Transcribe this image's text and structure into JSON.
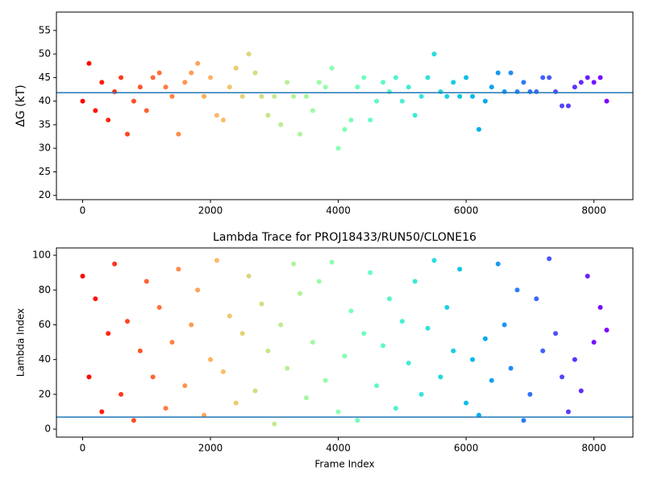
{
  "chart_data": [
    {
      "type": "scatter",
      "ylabel": "ΔG (kT)",
      "colormap": "rainbow_r",
      "hline": 41.8,
      "hline_color": "#1f77b4",
      "xlim": [
        -410,
        8610
      ],
      "xticks": [
        0,
        2000,
        4000,
        6000,
        8000
      ],
      "ylim": [
        19.1,
        58.9
      ],
      "yticks": [
        20,
        25,
        30,
        35,
        40,
        45,
        50,
        55
      ],
      "x": [
        0,
        100,
        200,
        300,
        400,
        500,
        600,
        700,
        800,
        900,
        1000,
        1100,
        1200,
        1300,
        1400,
        1500,
        1600,
        1700,
        1800,
        1900,
        2000,
        2100,
        2200,
        2300,
        2400,
        2500,
        2600,
        2700,
        2800,
        2900,
        3000,
        3100,
        3200,
        3300,
        3400,
        3500,
        3600,
        3700,
        3800,
        3900,
        4000,
        4100,
        4200,
        4300,
        4400,
        4500,
        4600,
        4700,
        4800,
        4900,
        5000,
        5100,
        5200,
        5300,
        5400,
        5500,
        5600,
        5700,
        5800,
        5900,
        6000,
        6100,
        6200,
        6300,
        6400,
        6500,
        6600,
        6700,
        6800,
        6900,
        7000,
        7100,
        7200,
        7300,
        7400,
        7500,
        7600,
        7700,
        7800,
        7900,
        8000,
        8100,
        8200
      ],
      "values": [
        40,
        48,
        38,
        44,
        36,
        42,
        45,
        33,
        40,
        43,
        38,
        45,
        46,
        43,
        41,
        33,
        44,
        46,
        48,
        41,
        45,
        37,
        36,
        43,
        47,
        41,
        50,
        46,
        41,
        37,
        41,
        35,
        44,
        41,
        33,
        41,
        38,
        44,
        43,
        47,
        30,
        34,
        36,
        43,
        45,
        36,
        40,
        44,
        42,
        45,
        40,
        43,
        37,
        41,
        45,
        50,
        42,
        41,
        44,
        41,
        45,
        41,
        34,
        40,
        43,
        46,
        42,
        46,
        42,
        44,
        42,
        42,
        45,
        45,
        42,
        39,
        39,
        43,
        44,
        45,
        44,
        45,
        40
      ]
    },
    {
      "type": "scatter",
      "title": "Lambda Trace for PROJ18433/RUN50/CLONE16",
      "xlabel": "Frame Index",
      "ylabel": "Lambda Index",
      "colormap": "rainbow_r",
      "hline": 6.9,
      "hline_color": "#1f77b4",
      "xlim": [
        -410,
        8610
      ],
      "xticks": [
        0,
        2000,
        4000,
        6000,
        8000
      ],
      "ylim": [
        -4.6,
        104.2
      ],
      "yticks": [
        0,
        20,
        40,
        60,
        80,
        100
      ],
      "x": [
        0,
        100,
        200,
        300,
        400,
        500,
        600,
        700,
        800,
        900,
        1000,
        1100,
        1200,
        1300,
        1400,
        1500,
        1600,
        1700,
        1800,
        1900,
        2000,
        2100,
        2200,
        2300,
        2400,
        2500,
        2600,
        2700,
        2800,
        2900,
        3000,
        3100,
        3200,
        3300,
        3400,
        3500,
        3600,
        3700,
        3800,
        3900,
        4000,
        4100,
        4200,
        4300,
        4400,
        4500,
        4600,
        4700,
        4800,
        4900,
        5000,
        5100,
        5200,
        5300,
        5400,
        5500,
        5600,
        5700,
        5800,
        5900,
        6000,
        6100,
        6200,
        6300,
        6400,
        6500,
        6600,
        6700,
        6800,
        6900,
        7000,
        7100,
        7200,
        7300,
        7400,
        7500,
        7600,
        7700,
        7800,
        7900,
        8000,
        8100,
        8200
      ],
      "values": [
        88,
        30,
        75,
        10,
        55,
        95,
        20,
        62,
        5,
        45,
        85,
        30,
        70,
        12,
        50,
        92,
        25,
        60,
        80,
        8,
        40,
        97,
        33,
        65,
        15,
        55,
        88,
        22,
        72,
        45,
        3,
        60,
        35,
        95,
        78,
        18,
        50,
        85,
        28,
        96,
        10,
        42,
        68,
        5,
        55,
        90,
        25,
        48,
        75,
        12,
        62,
        38,
        85,
        20,
        58,
        97,
        30,
        70,
        45,
        92,
        15,
        40,
        8,
        52,
        28,
        95,
        60,
        35,
        80,
        5,
        20,
        75,
        45,
        98,
        55,
        30,
        10,
        40,
        22,
        88,
        50,
        70,
        57
      ]
    }
  ]
}
